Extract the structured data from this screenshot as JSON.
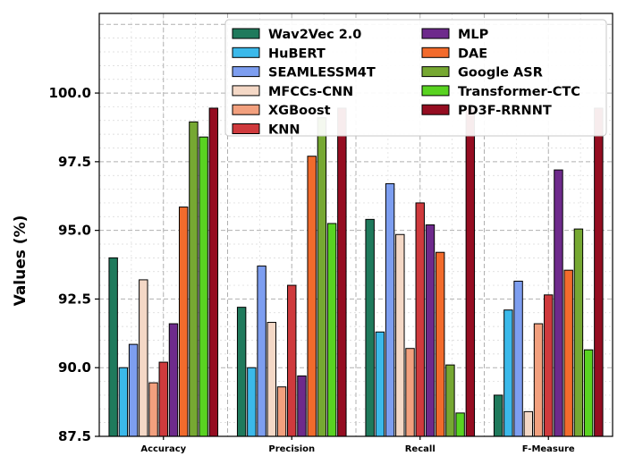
{
  "chart_data": {
    "type": "bar",
    "title": "",
    "xlabel": "",
    "ylabel": "Values (%)",
    "ylim": [
      87.5,
      102.9
    ],
    "yticks": [
      "87.5",
      "90.0",
      "92.5",
      "95.0",
      "97.5",
      "100.0"
    ],
    "grid": true,
    "legend_position": "top-right",
    "categories": [
      "Accuracy",
      "Precision",
      "Recall",
      "F-Measure"
    ],
    "series": [
      {
        "name": "Wav2Vec 2.0",
        "color": "#1f7a5c",
        "values": [
          94.0,
          92.2,
          95.4,
          89.0
        ]
      },
      {
        "name": "HuBERT",
        "color": "#3bb9ea",
        "values": [
          90.0,
          90.0,
          91.3,
          92.1
        ]
      },
      {
        "name": "SEAMLESSM4T",
        "color": "#7d9ef0",
        "values": [
          90.85,
          93.7,
          96.7,
          93.15
        ]
      },
      {
        "name": "MFCCs-CNN",
        "color": "#f4d8c6",
        "values": [
          93.2,
          91.65,
          94.85,
          88.4
        ]
      },
      {
        "name": "XGBoost",
        "color": "#f2a07e",
        "values": [
          89.45,
          89.3,
          90.7,
          91.6
        ]
      },
      {
        "name": "KNN",
        "color": "#cf3a3d",
        "values": [
          90.2,
          93.0,
          96.0,
          92.65
        ]
      },
      {
        "name": "MLP",
        "color": "#6e2a8c",
        "values": [
          91.6,
          89.7,
          95.2,
          97.2
        ]
      },
      {
        "name": "DAE",
        "color": "#f26b2c",
        "values": [
          95.85,
          97.7,
          94.2,
          93.55
        ]
      },
      {
        "name": "Google ASR",
        "color": "#76a832",
        "values": [
          98.95,
          99.1,
          90.1,
          95.05
        ]
      },
      {
        "name": "Transformer-CTC",
        "color": "#59d321",
        "values": [
          98.4,
          95.25,
          88.35,
          90.65
        ]
      },
      {
        "name": "PD3F-RRNNT",
        "color": "#950d21",
        "values": [
          99.45,
          99.45,
          99.45,
          99.45
        ]
      }
    ]
  }
}
